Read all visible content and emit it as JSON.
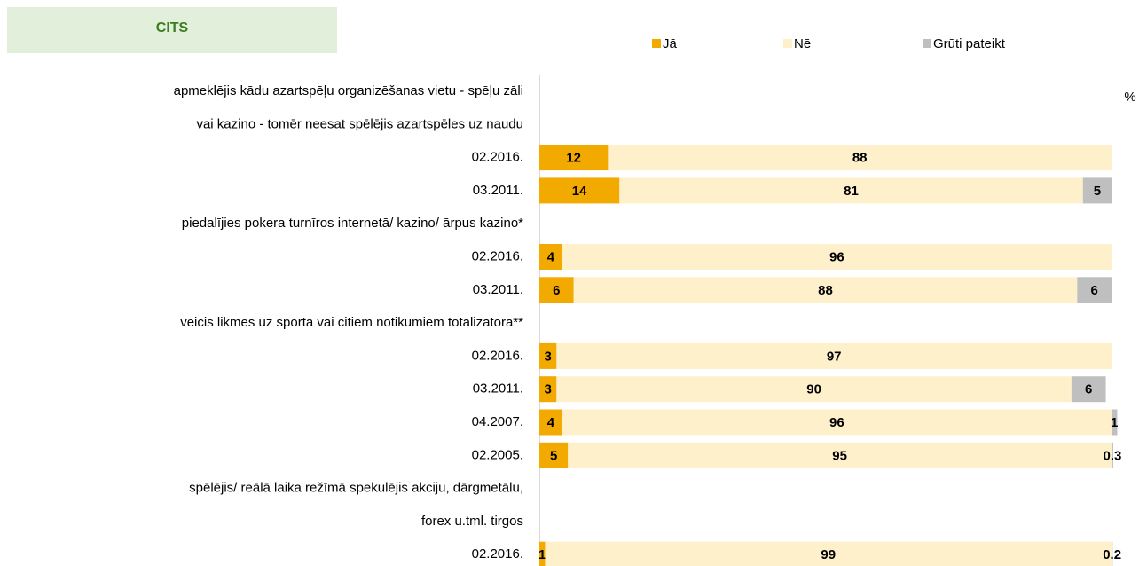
{
  "chart_data": {
    "type": "stacked-bar-horizontal",
    "title": "CITS",
    "unit_label": "%",
    "categories": [
      "apmeklējis kādu azartspēļu organizēšanas vietu - spēļu zāli",
      "vai kazino - tomēr neesat spēlējis azartspēles uz naudu",
      "02.2016.",
      "03.2011.",
      "piedalījies pokera turnīros internetā/ kazino/ ārpus kazino*",
      "02.2016.",
      "03.2011.",
      "veicis likmes uz sporta vai citiem notikumiem totalizatorā**",
      "02.2016.",
      "03.2011.",
      "04.2007.",
      "02.2005.",
      "spēlējis/ reālā laika režīmā spekulējis akciju, dārgmetālu,",
      "forex u.tml. tirgos",
      "02.2016."
    ],
    "series": [
      {
        "name": "Jā",
        "color": "#f2a900",
        "values": [
          null,
          null,
          12,
          14,
          null,
          4,
          6,
          null,
          3,
          3,
          4,
          5,
          null,
          null,
          1
        ]
      },
      {
        "name": "Nē",
        "color": "#fff0cc",
        "values": [
          null,
          null,
          88,
          81,
          null,
          96,
          88,
          null,
          97,
          90,
          96,
          95,
          null,
          null,
          99
        ]
      },
      {
        "name": "Grūti pateikt",
        "color": "#bfbfbf",
        "values": [
          null,
          null,
          null,
          5,
          null,
          null,
          6,
          null,
          null,
          6,
          1,
          0.3,
          null,
          null,
          0.2
        ]
      }
    ],
    "xlim": [
      0,
      100
    ],
    "legend": "top"
  }
}
